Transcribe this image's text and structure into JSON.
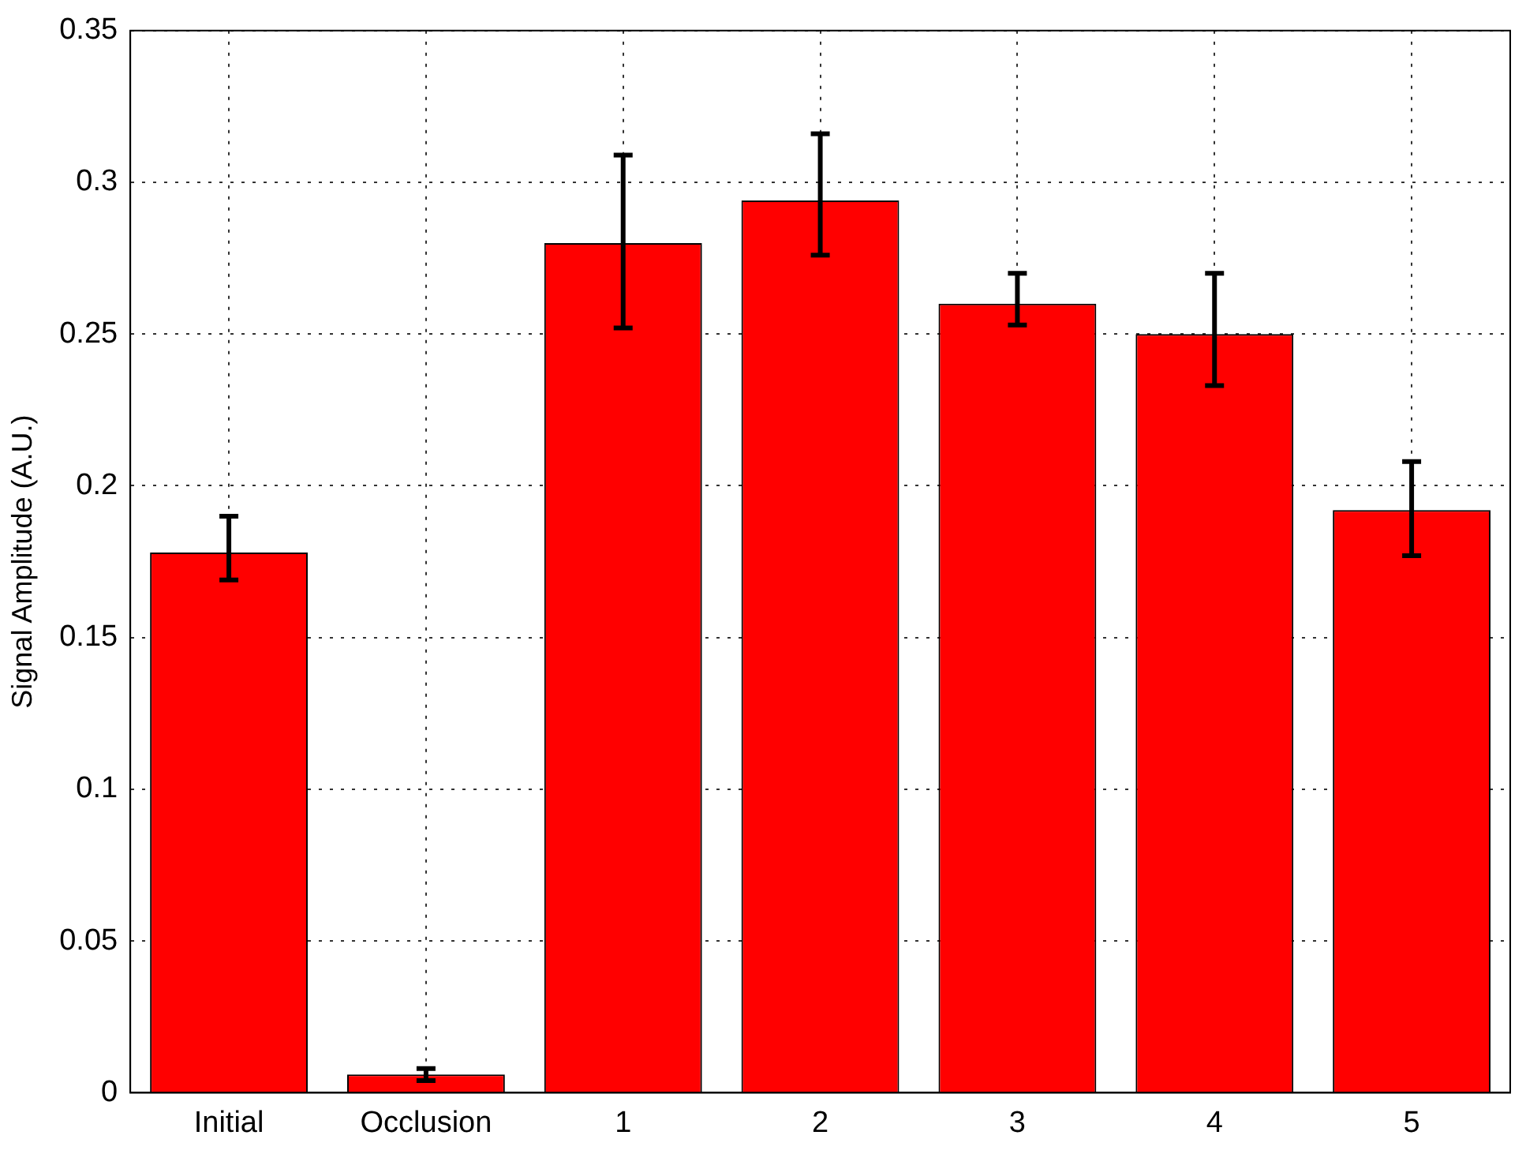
{
  "chart_data": {
    "type": "bar",
    "ylabel": "Signal Amplitude (A.U.)",
    "categories": [
      "Initial",
      "Occlusion",
      "1",
      "2",
      "3",
      "4",
      "5"
    ],
    "values": [
      0.178,
      0.006,
      0.28,
      0.294,
      0.26,
      0.25,
      0.192
    ],
    "errors": [
      [
        0.169,
        0.19
      ],
      [
        0.004,
        0.008
      ],
      [
        0.252,
        0.309
      ],
      [
        0.276,
        0.316
      ],
      [
        0.253,
        0.27
      ],
      [
        0.233,
        0.27
      ],
      [
        0.177,
        0.208
      ]
    ],
    "color": "#ff0000",
    "ylim": [
      0,
      0.35
    ],
    "yticks": [
      0,
      0.05,
      0.1,
      0.15,
      0.2,
      0.25,
      0.3,
      0.35
    ],
    "grid": true,
    "legend": false
  }
}
